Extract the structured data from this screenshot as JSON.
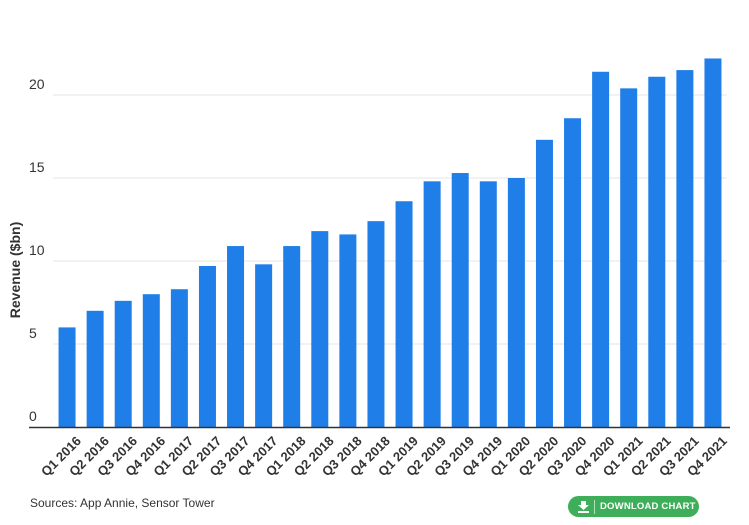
{
  "chart_data": {
    "type": "bar",
    "title": "",
    "xlabel": "",
    "ylabel": "Revenue ($bn)",
    "ylim": [
      0,
      25
    ],
    "yticks": [
      0,
      5,
      10,
      15,
      20
    ],
    "grid": true,
    "legend": "none",
    "bar_color": "#1f7ee8",
    "categories": [
      "Q1 2016",
      "Q2 2016",
      "Q3 2016",
      "Q4 2016",
      "Q1 2017",
      "Q2 2017",
      "Q3 2017",
      "Q4 2017",
      "Q1 2018",
      "Q2 2018",
      "Q3 2018",
      "Q4 2018",
      "Q1 2019",
      "Q2 2019",
      "Q3 2019",
      "Q4 2019",
      "Q1 2020",
      "Q2 2020",
      "Q3 2020",
      "Q4 2020",
      "Q1 2021",
      "Q2 2021",
      "Q3 2021",
      "Q4 2021"
    ],
    "values": [
      6.0,
      7.0,
      7.6,
      8.0,
      8.3,
      9.7,
      10.9,
      9.8,
      10.9,
      11.8,
      11.6,
      12.4,
      13.6,
      14.8,
      15.3,
      14.8,
      15.0,
      17.3,
      18.6,
      21.4,
      20.4,
      21.1,
      21.5,
      22.2
    ]
  },
  "footer": {
    "sources": "Sources: App Annie, Sensor Tower",
    "download_label": "DOWNLOAD CHART",
    "download_icon": "download-icon",
    "button_color": "#3fae5a"
  }
}
